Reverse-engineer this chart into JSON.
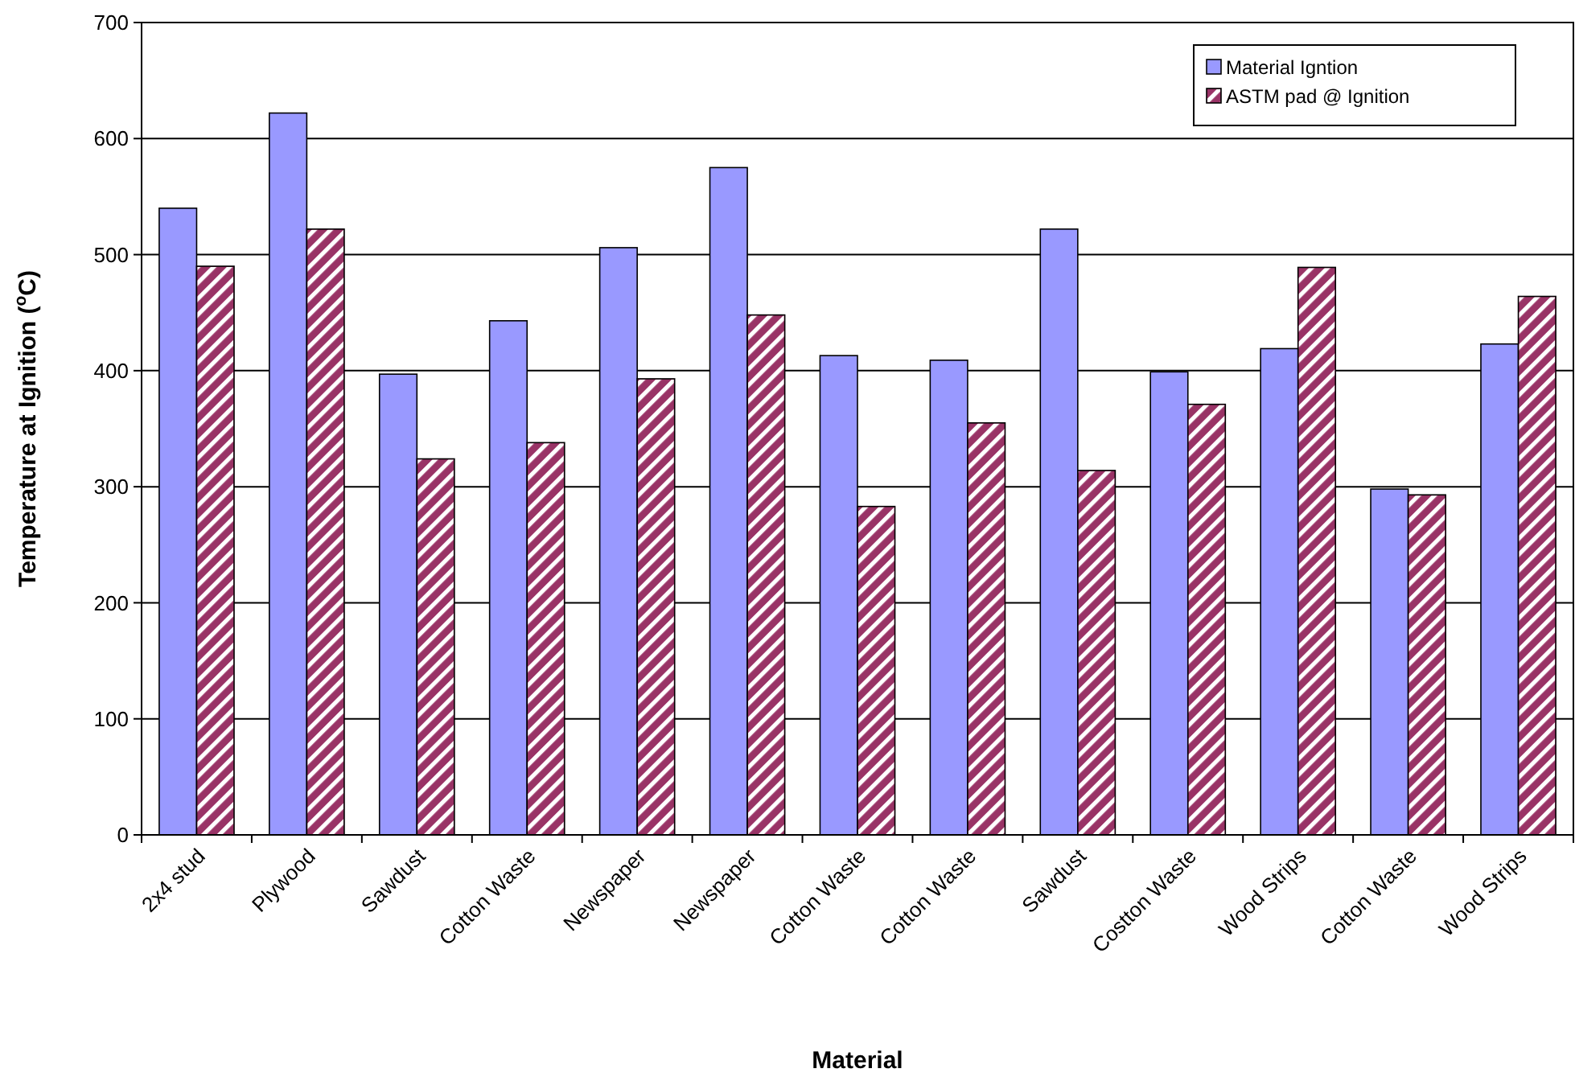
{
  "chart_data": {
    "type": "bar",
    "xlabel": "Material",
    "ylabel": "Temperature at Ignition ($^{o}$C)",
    "categories": [
      "2x4 stud",
      "Plywood",
      "Sawdust",
      "Cotton Waste",
      "Newspaper",
      "Newspaper",
      "Cotton Waste",
      "Cotton Waste",
      "Sawdust",
      "Costton Waste",
      "Wood Strips",
      "Cotton Waste",
      "Wood Strips"
    ],
    "series": [
      {
        "name": "Material Igntion",
        "color": "#9999ff",
        "values": [
          540,
          622,
          397,
          443,
          506,
          575,
          413,
          409,
          522,
          399,
          419,
          298,
          423
        ]
      },
      {
        "name": "ASTM pad @ Ignition",
        "color": "#993366",
        "values": [
          490,
          522,
          324,
          338,
          393,
          448,
          283,
          355,
          314,
          371,
          489,
          293,
          464
        ]
      }
    ],
    "ylim": [
      0,
      700
    ],
    "yticks": [
      0,
      100,
      200,
      300,
      400,
      500,
      600,
      700
    ],
    "grid": "y",
    "legend": "top right"
  }
}
